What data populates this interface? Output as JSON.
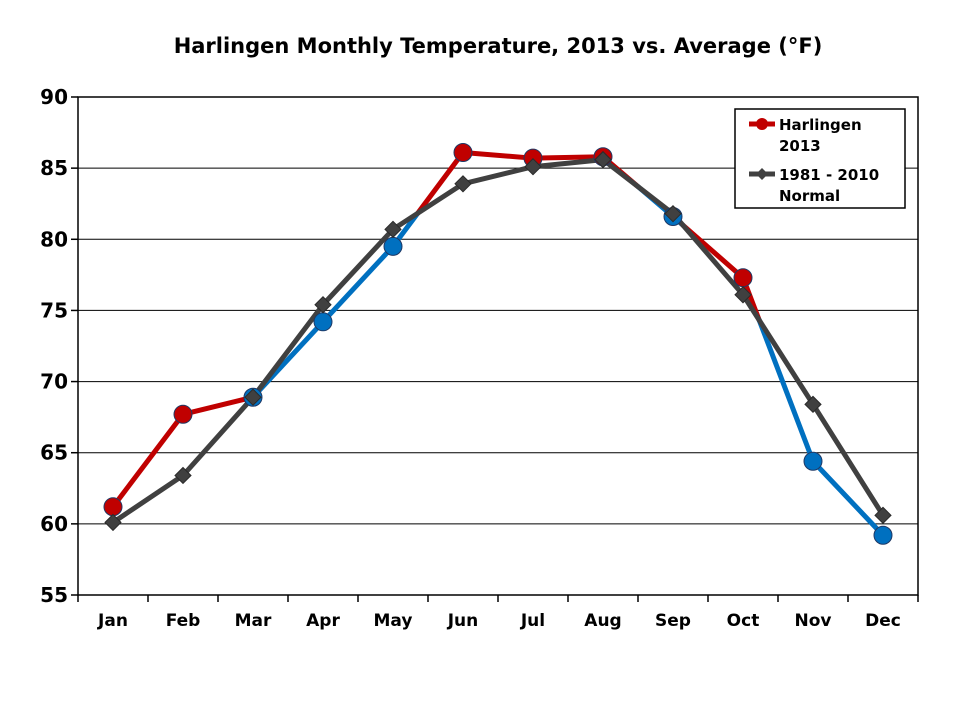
{
  "chart_data": {
    "type": "line",
    "title": "Harlingen Monthly Temperature, 2013 vs. Average (°F)",
    "xlabel": "",
    "ylabel": "",
    "categories": [
      "Jan",
      "Feb",
      "Mar",
      "Apr",
      "May",
      "Jun",
      "Jul",
      "Aug",
      "Sep",
      "Oct",
      "Nov",
      "Dec"
    ],
    "ylim": [
      55,
      90
    ],
    "yticks": [
      55,
      60,
      65,
      70,
      75,
      80,
      85,
      90
    ],
    "grid": true,
    "legend_position": "top-right",
    "series": [
      {
        "name": "Harlingen 2013",
        "legend_lines": [
          "Harlingen",
          "2013"
        ],
        "marker": "circle",
        "values": [
          61.2,
          67.7,
          68.9,
          74.2,
          79.5,
          86.1,
          85.7,
          85.8,
          81.6,
          77.3,
          64.4,
          59.2
        ],
        "color_above_normal": "#c00000",
        "color_below_normal": "#0070c0"
      },
      {
        "name": "1981 - 2010 Normal",
        "legend_lines": [
          "1981 - 2010",
          "Normal"
        ],
        "marker": "diamond",
        "values": [
          60.1,
          63.4,
          68.9,
          75.4,
          80.7,
          83.9,
          85.1,
          85.6,
          81.8,
          76.1,
          68.4,
          60.6
        ],
        "color": "#404040"
      }
    ]
  }
}
